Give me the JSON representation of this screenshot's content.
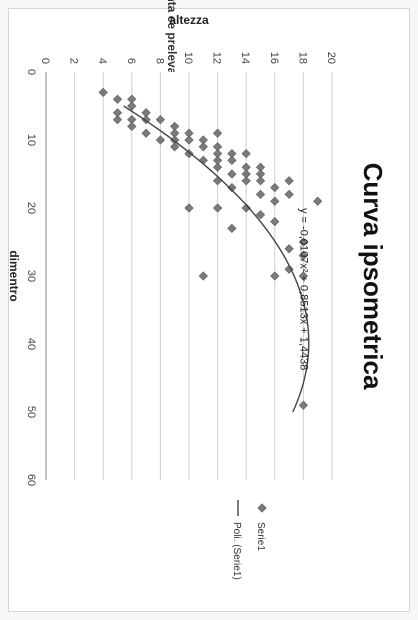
{
  "page": {
    "top_edge_text": "pianta ee prelevare"
  },
  "chart_data": {
    "type": "scatter",
    "title": "Curva ipsometrica",
    "xlabel": "dimentro",
    "ylabel": "altezza",
    "xlim": [
      0,
      60
    ],
    "ylim": [
      0,
      20
    ],
    "x_ticks": [
      0,
      10,
      20,
      30,
      40,
      50,
      60
    ],
    "y_ticks": [
      0,
      2,
      4,
      6,
      8,
      10,
      12,
      14,
      16,
      18,
      20
    ],
    "grid": "horizontal",
    "legend_position": "right",
    "series": [
      {
        "name": "Serie1",
        "marker": "diamond",
        "color": "#7a7a7a",
        "points": [
          [
            3,
            4
          ],
          [
            4,
            5
          ],
          [
            4,
            6
          ],
          [
            5,
            6
          ],
          [
            6,
            7
          ],
          [
            6,
            5
          ],
          [
            7,
            6
          ],
          [
            7,
            7
          ],
          [
            7,
            8
          ],
          [
            7,
            5
          ],
          [
            8,
            6
          ],
          [
            8,
            9
          ],
          [
            9,
            9
          ],
          [
            9,
            10
          ],
          [
            9,
            7
          ],
          [
            9,
            12
          ],
          [
            10,
            10
          ],
          [
            10,
            11
          ],
          [
            10,
            8
          ],
          [
            10,
            9
          ],
          [
            11,
            11
          ],
          [
            11,
            12
          ],
          [
            11,
            9
          ],
          [
            12,
            10
          ],
          [
            12,
            12
          ],
          [
            12,
            13
          ],
          [
            12,
            14
          ],
          [
            13,
            11
          ],
          [
            13,
            12
          ],
          [
            13,
            13
          ],
          [
            14,
            12
          ],
          [
            14,
            14
          ],
          [
            14,
            15
          ],
          [
            15,
            13
          ],
          [
            15,
            14
          ],
          [
            15,
            15
          ],
          [
            16,
            12
          ],
          [
            16,
            14
          ],
          [
            16,
            15
          ],
          [
            16,
            17
          ],
          [
            17,
            16
          ],
          [
            17,
            13
          ],
          [
            18,
            15
          ],
          [
            18,
            17
          ],
          [
            19,
            19
          ],
          [
            19,
            16
          ],
          [
            20,
            14
          ],
          [
            20,
            10
          ],
          [
            20,
            12
          ],
          [
            21,
            15
          ],
          [
            22,
            16
          ],
          [
            23,
            13
          ],
          [
            25,
            18
          ],
          [
            26,
            17
          ],
          [
            27,
            18
          ],
          [
            29,
            17
          ],
          [
            30,
            18
          ],
          [
            30,
            11
          ],
          [
            30,
            16
          ],
          [
            49,
            18
          ]
        ]
      }
    ],
    "trendline": {
      "name": "Poli. (Serie1)",
      "type": "polynomial",
      "color": "#444444",
      "coefficients": [
        -0.0107,
        0.8513,
        1.4438
      ],
      "x_range": [
        5,
        50
      ],
      "equation_text": "y = -0,0107x² + 0,8513x + 1,4438"
    }
  }
}
